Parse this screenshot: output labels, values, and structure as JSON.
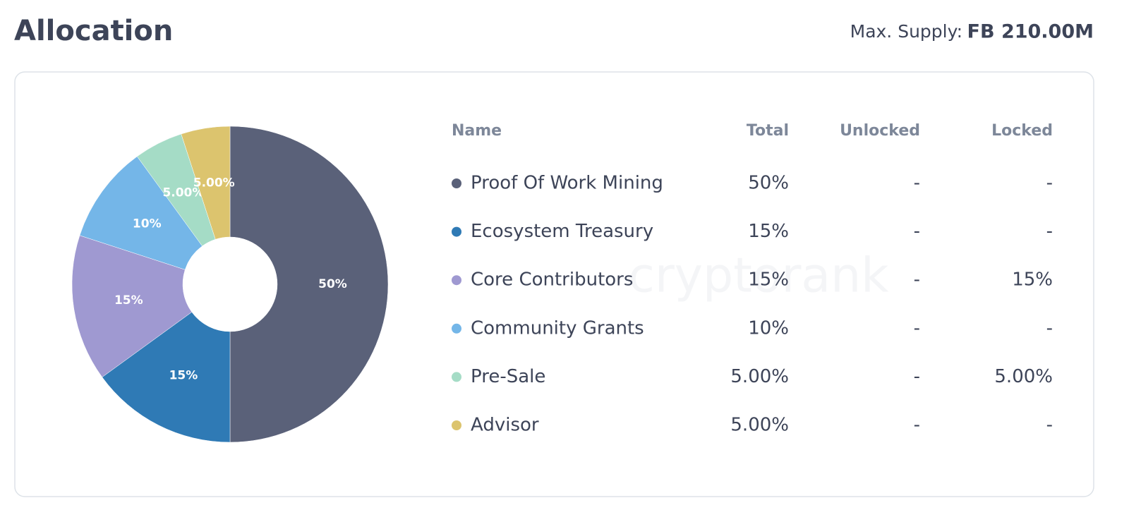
{
  "header": {
    "title": "Allocation",
    "supply_label": "Max. Supply:",
    "supply_value": "FB 210.00M"
  },
  "chart_data": {
    "type": "pie",
    "donut": true,
    "categories": [
      "Proof Of Work Mining",
      "Ecosystem Treasury",
      "Core Contributors",
      "Community Grants",
      "Pre-Sale",
      "Advisor"
    ],
    "values": [
      50,
      15,
      15,
      10,
      5,
      5
    ],
    "value_labels": [
      "50%",
      "15%",
      "15%",
      "10%",
      "5.00%",
      "5.00%"
    ],
    "colors": [
      "#5a6179",
      "#2f7ab5",
      "#9f99d1",
      "#74b6e8",
      "#a5dcc6",
      "#dcc46e"
    ]
  },
  "table": {
    "columns": [
      "Name",
      "Total",
      "Unlocked",
      "Locked"
    ],
    "unlocked": [
      "-",
      "-",
      "-",
      "-",
      "-",
      "-"
    ],
    "locked": [
      "-",
      "-",
      "15%",
      "-",
      "5.00%",
      "-"
    ]
  },
  "watermark": "cryptorank"
}
